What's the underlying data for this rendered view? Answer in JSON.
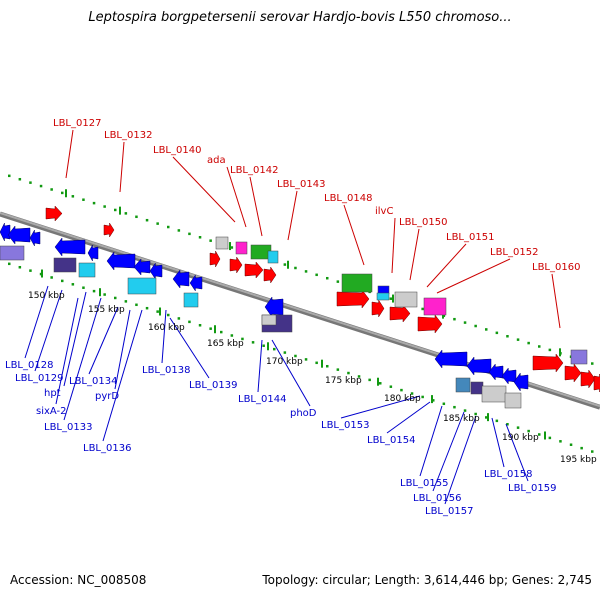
{
  "title": "Leptospira borgpetersenii serovar Hardjo-bovis L550 chromoso...",
  "footer": {
    "accession": "Accession: NC_008508",
    "summary": "Topology: circular; Length: 3,614,446 bp; Genes: 2,745"
  },
  "colors": {
    "forward_label": "#cc0000",
    "reverse_label": "#0000cc",
    "forward_gene": "#ff0000",
    "reverse_gene": "#0000ff",
    "backbone": "#888888",
    "tick": "#119911",
    "rna": "#22aa22",
    "pseudo": "#cccccc",
    "misc_magenta": "#ff22cc",
    "misc_cyan": "#22ccee",
    "misc_purple": "#443388",
    "misc_lavender": "#8877dd"
  },
  "kbp_labels": [
    "150 kbp",
    "155 kbp",
    "160 kbp",
    "165 kbp",
    "170 kbp",
    "175 kbp",
    "180 kbp",
    "185 kbp",
    "190 kbp",
    "195 kbp"
  ],
  "forward_labels": [
    "LBL_0127",
    "LBL_0132",
    "LBL_0140",
    "ada",
    "LBL_0142",
    "LBL_0143",
    "LBL_0148",
    "ilvC",
    "LBL_0150",
    "LBL_0151",
    "LBL_0152",
    "LBL_0160"
  ],
  "reverse_labels": [
    "LBL_0128",
    "LBL_0129",
    "hpt",
    "sixA-2",
    "LBL_0133",
    "LBL_0134",
    "pyrD",
    "LBL_0136",
    "LBL_0138",
    "LBL_0139",
    "LBL_0144",
    "phoD",
    "LBL_0153",
    "LBL_0154",
    "LBL_0155",
    "LBL_0156",
    "LBL_0157",
    "LBL_0158",
    "LBL_0159"
  ]
}
